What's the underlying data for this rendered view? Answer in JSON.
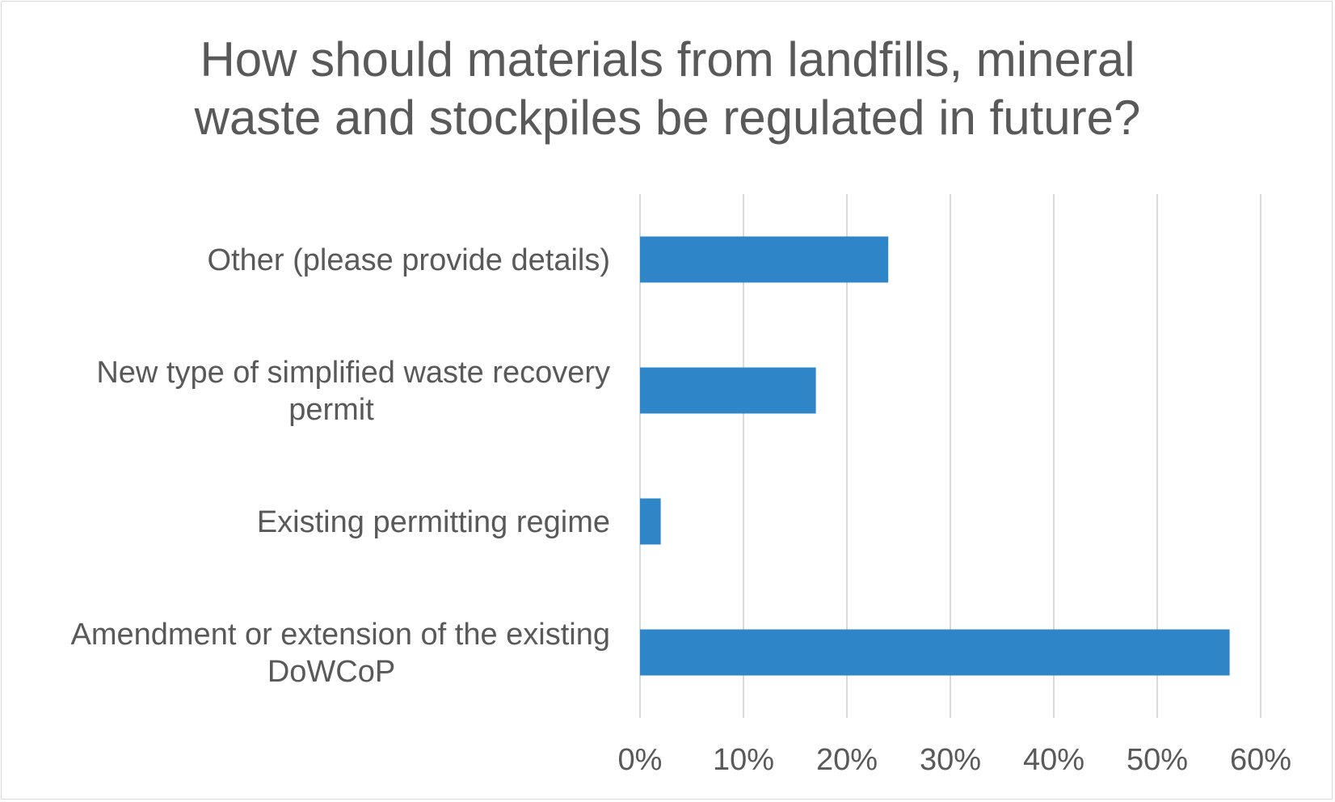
{
  "chart_data": {
    "type": "bar",
    "orientation": "horizontal",
    "title_lines": [
      "How should materials from landfills, mineral",
      "waste and stockpiles be regulated in future?"
    ],
    "categories": [
      [
        "Amendment or extension of the existing",
        "DoWCoP"
      ],
      [
        "Existing permitting regime"
      ],
      [
        "New type of simplified waste recovery",
        "permit"
      ],
      [
        "Other (please provide details)"
      ]
    ],
    "values": [
      57,
      2,
      17,
      24
    ],
    "xlim": [
      0,
      60
    ],
    "xticks": [
      "0%",
      "10%",
      "20%",
      "30%",
      "40%",
      "50%",
      "60%"
    ],
    "xtick_values": [
      0,
      10,
      20,
      30,
      40,
      50,
      60
    ],
    "grid": true,
    "bar_color": "#2e86c8",
    "grid_color": "#d9d9d9"
  }
}
